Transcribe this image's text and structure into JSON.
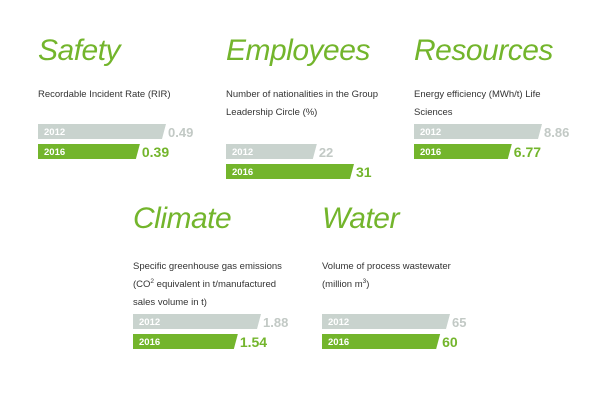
{
  "theme": {
    "accent": "#73b52c",
    "muted": "#c9d3ce",
    "muted_text": "#c2c9c5"
  },
  "chart_data": [
    {
      "type": "bar",
      "title": "Safety",
      "description": "Recordable Incident Rate (RIR)",
      "categories": [
        "2012",
        "2016"
      ],
      "values": [
        0.49,
        0.39
      ],
      "value_labels": [
        "0.49",
        "0.39"
      ]
    },
    {
      "type": "bar",
      "title": "Employees",
      "description": "Number of nationalities in the Group Leadership Circle (%)",
      "categories": [
        "2012",
        "2016"
      ],
      "values": [
        22,
        31
      ],
      "value_labels": [
        "22",
        "31"
      ]
    },
    {
      "type": "bar",
      "title": "Resources",
      "description": "Energy efficiency (MWh/t) Life Sciences",
      "categories": [
        "2012",
        "2016"
      ],
      "values": [
        8.86,
        6.77
      ],
      "value_labels": [
        "8.86",
        "6.77"
      ]
    },
    {
      "type": "bar",
      "title": "Climate",
      "description": "Specific greenhouse gas emissions (CO",
      "description_sup": "2",
      "description_rest": " equivalent in t/manufactured sales volume in t)",
      "categories": [
        "2012",
        "2016"
      ],
      "values": [
        1.88,
        1.54
      ],
      "value_labels": [
        "1.88",
        "1.54"
      ]
    },
    {
      "type": "bar",
      "title": "Water",
      "description": "Volume of process wastewater (million m",
      "description_sup": "3",
      "description_rest": ")",
      "categories": [
        "2012",
        "2016"
      ],
      "values": [
        65,
        60
      ],
      "value_labels": [
        "65",
        "60"
      ]
    }
  ]
}
